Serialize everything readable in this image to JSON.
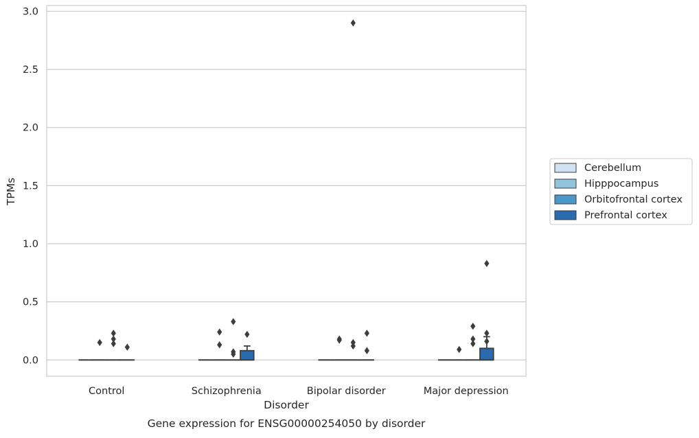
{
  "chart_data": {
    "type": "box",
    "title": "",
    "caption": "Gene expression for ENSG00000254050 by disorder",
    "xlabel": "Disorder",
    "ylabel": "TPMs",
    "ylim": [
      -0.14,
      3.05
    ],
    "yticks": [
      0.0,
      0.5,
      1.0,
      1.5,
      2.0,
      2.5,
      3.0
    ],
    "ytick_labels": [
      "0.0",
      "0.5",
      "1.0",
      "1.5",
      "2.0",
      "2.5",
      "3.0"
    ],
    "grid": "horizontal",
    "legend_position": "right",
    "categories": [
      "Control",
      "Schizophrenia",
      "Bipolar disorder",
      "Major depression"
    ],
    "series": [
      {
        "name": "Cerebellum",
        "color": "#cfe1f2",
        "boxes": [
          {
            "q1": 0,
            "median": 0,
            "q3": 0,
            "whisker_low": 0,
            "whisker_high": 0,
            "outliers": []
          },
          {
            "q1": 0,
            "median": 0,
            "q3": 0,
            "whisker_low": 0,
            "whisker_high": 0,
            "outliers": []
          },
          {
            "q1": 0,
            "median": 0,
            "q3": 0,
            "whisker_low": 0,
            "whisker_high": 0,
            "outliers": []
          },
          {
            "q1": 0,
            "median": 0,
            "q3": 0,
            "whisker_low": 0,
            "whisker_high": 0,
            "outliers": []
          }
        ]
      },
      {
        "name": "Hipppocampus",
        "color": "#93c4de",
        "boxes": [
          {
            "q1": 0,
            "median": 0,
            "q3": 0,
            "whisker_low": 0,
            "whisker_high": 0,
            "outliers": [
              0.15
            ]
          },
          {
            "q1": 0,
            "median": 0,
            "q3": 0,
            "whisker_low": 0,
            "whisker_high": 0,
            "outliers": [
              0.24,
              0.13
            ]
          },
          {
            "q1": 0,
            "median": 0,
            "q3": 0,
            "whisker_low": 0,
            "whisker_high": 0,
            "outliers": [
              0.18,
              0.17
            ]
          },
          {
            "q1": 0,
            "median": 0,
            "q3": 0,
            "whisker_low": 0,
            "whisker_high": 0,
            "outliers": [
              0.09
            ]
          }
        ]
      },
      {
        "name": "Orbitofrontal cortex",
        "color": "#4a98c9",
        "boxes": [
          {
            "q1": 0,
            "median": 0,
            "q3": 0,
            "whisker_low": 0,
            "whisker_high": 0,
            "outliers": [
              0.23,
              0.18,
              0.14
            ]
          },
          {
            "q1": 0,
            "median": 0,
            "q3": 0,
            "whisker_low": 0,
            "whisker_high": 0,
            "outliers": [
              0.33,
              0.07,
              0.05
            ]
          },
          {
            "q1": 0,
            "median": 0,
            "q3": 0,
            "whisker_low": 0,
            "whisker_high": 0,
            "outliers": [
              2.9,
              0.15,
              0.12
            ]
          },
          {
            "q1": 0,
            "median": 0,
            "q3": 0,
            "whisker_low": 0,
            "whisker_high": 0,
            "outliers": [
              0.29,
              0.18,
              0.14
            ]
          }
        ]
      },
      {
        "name": "Prefrontal cortex",
        "color": "#2a6aad",
        "boxes": [
          {
            "q1": 0,
            "median": 0,
            "q3": 0,
            "whisker_low": 0,
            "whisker_high": 0,
            "outliers": [
              0.11
            ]
          },
          {
            "q1": 0,
            "median": 0,
            "q3": 0.08,
            "whisker_low": 0,
            "whisker_high": 0.12,
            "outliers": [
              0.22
            ]
          },
          {
            "q1": 0,
            "median": 0,
            "q3": 0,
            "whisker_low": 0,
            "whisker_high": 0,
            "outliers": [
              0.23,
              0.08
            ]
          },
          {
            "q1": 0,
            "median": 0,
            "q3": 0.1,
            "whisker_low": 0,
            "whisker_high": 0.2,
            "outliers": [
              0.83,
              0.23,
              0.16
            ]
          }
        ]
      }
    ]
  }
}
